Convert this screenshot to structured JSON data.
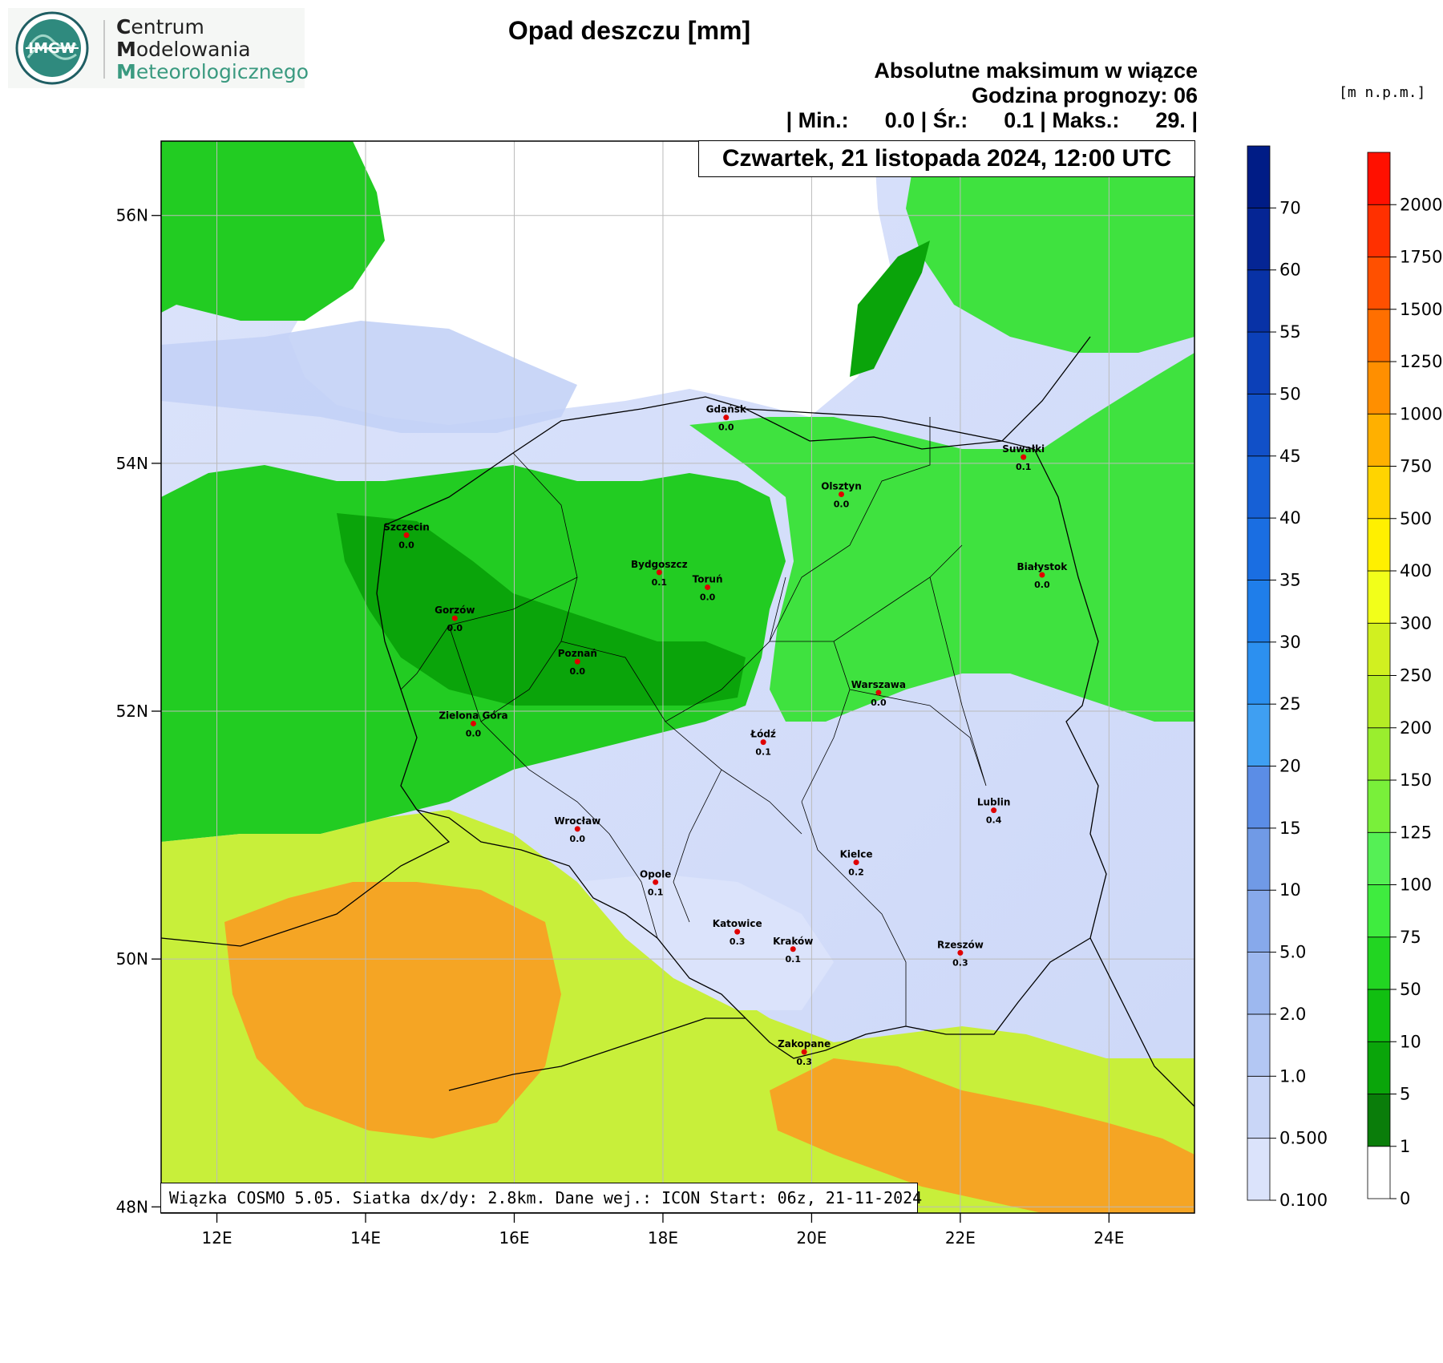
{
  "logo": {
    "emblem_text": "IMGW",
    "line1_lead": "C",
    "line1_rest": "entrum",
    "line2_lead": "M",
    "line2_rest": "odelowania",
    "line3_lead": "M",
    "line3_rest": "eteorologicznego"
  },
  "title": "Opad deszczu [mm]",
  "header": {
    "line1": "Absolutne maksimum w wiązce",
    "line2": "Godzina prognozy: 06",
    "line3": "| Min.:      0.0 | Śr.:      0.1 | Maks.:      29. |"
  },
  "date_label": "Czwartek, 21 listopada 2024, 12:00 UTC",
  "footer": "Wiązka COSMO 5.05. Siatka dx/dy: 2.8km. Dane wej.: ICON Start: 06z, 21-11-2024",
  "map": {
    "lon_range": [
      11.25,
      25.15
    ],
    "lat_range": [
      47.95,
      56.6
    ],
    "lat_ticks": [
      "56N",
      "54N",
      "52N",
      "50N",
      "48N"
    ],
    "lon_ticks": [
      "12E",
      "14E",
      "16E",
      "18E",
      "20E",
      "22E",
      "24E"
    ],
    "colors": {
      "dry_light": "#dbe3fb",
      "green_bright": "#3fe23f",
      "green_mid": "#22cc22",
      "green_dark": "#0aa40a",
      "yellow_green": "#c8ef3a",
      "orange": "#f5a524",
      "city_marker": "#e00000",
      "border": "#000000",
      "grid": "#bbbbbb"
    },
    "cities": [
      {
        "name": "Gdańsk",
        "value": "0.0",
        "lon": 18.85,
        "lat": 54.37
      },
      {
        "name": "Suwałki",
        "value": "0.1",
        "lon": 22.85,
        "lat": 54.05
      },
      {
        "name": "Olsztyn",
        "value": "0.0",
        "lon": 20.4,
        "lat": 53.75
      },
      {
        "name": "Szczecin",
        "value": "0.0",
        "lon": 14.55,
        "lat": 53.42
      },
      {
        "name": "Białystok",
        "value": "0.0",
        "lon": 23.1,
        "lat": 53.1
      },
      {
        "name": "Bydgoszcz",
        "value": "0.1",
        "lon": 17.95,
        "lat": 53.12
      },
      {
        "name": "Toruń",
        "value": "0.0",
        "lon": 18.6,
        "lat": 53.0
      },
      {
        "name": "Gorzów",
        "value": "0.0",
        "lon": 15.2,
        "lat": 52.75
      },
      {
        "name": "Poznań",
        "value": "0.0",
        "lon": 16.85,
        "lat": 52.4
      },
      {
        "name": "Warszawa",
        "value": "0.0",
        "lon": 20.9,
        "lat": 52.15
      },
      {
        "name": "Zielona Góra",
        "value": "0.0",
        "lon": 15.45,
        "lat": 51.9
      },
      {
        "name": "Łódź",
        "value": "0.1",
        "lon": 19.35,
        "lat": 51.75
      },
      {
        "name": "Wrocław",
        "value": "0.0",
        "lon": 16.85,
        "lat": 51.05
      },
      {
        "name": "Lublin",
        "value": "0.4",
        "lon": 22.45,
        "lat": 51.2
      },
      {
        "name": "Kielce",
        "value": "0.2",
        "lon": 20.6,
        "lat": 50.78
      },
      {
        "name": "Opole",
        "value": "0.1",
        "lon": 17.9,
        "lat": 50.62
      },
      {
        "name": "Katowice",
        "value": "0.3",
        "lon": 19.0,
        "lat": 50.22
      },
      {
        "name": "Kraków",
        "value": "0.1",
        "lon": 19.75,
        "lat": 50.08
      },
      {
        "name": "Rzeszów",
        "value": "0.3",
        "lon": 22.0,
        "lat": 50.05
      },
      {
        "name": "Zakopane",
        "value": "0.3",
        "lon": 19.9,
        "lat": 49.25
      }
    ]
  },
  "rain_legend": {
    "labels": [
      "0.100",
      "0.500",
      "1.0",
      "2.0",
      "5.0",
      "10",
      "15",
      "20",
      "25",
      "30",
      "35",
      "40",
      "45",
      "50",
      "55",
      "60",
      "70"
    ],
    "colors": [
      "#dbe3fb",
      "#c9d6f7",
      "#b3c7f3",
      "#9db8ef",
      "#87a9eb",
      "#709ae6",
      "#5b8de6",
      "#3f9ff2",
      "#2c90f0",
      "#1f7eea",
      "#1a6ee2",
      "#1660d6",
      "#1150c8",
      "#0c40b8",
      "#0832a6",
      "#052594",
      "#001c86"
    ]
  },
  "height_legend": {
    "unit": "[m n.p.m.]",
    "labels": [
      "0",
      "1",
      "5",
      "10",
      "50",
      "75",
      "100",
      "125",
      "150",
      "200",
      "250",
      "300",
      "400",
      "500",
      "750",
      "1000",
      "1250",
      "1500",
      "1750",
      "2000"
    ],
    "colors": [
      "#ffffff",
      "#0a7d0a",
      "#0aa50a",
      "#11bf11",
      "#22d522",
      "#3fec3f",
      "#55f055",
      "#79f03a",
      "#9aee2e",
      "#b5ec25",
      "#d1f020",
      "#f2ff1a",
      "#fff000",
      "#ffd400",
      "#ffb000",
      "#ff8f00",
      "#ff6f00",
      "#ff5000",
      "#ff3000",
      "#ff1000"
    ]
  }
}
